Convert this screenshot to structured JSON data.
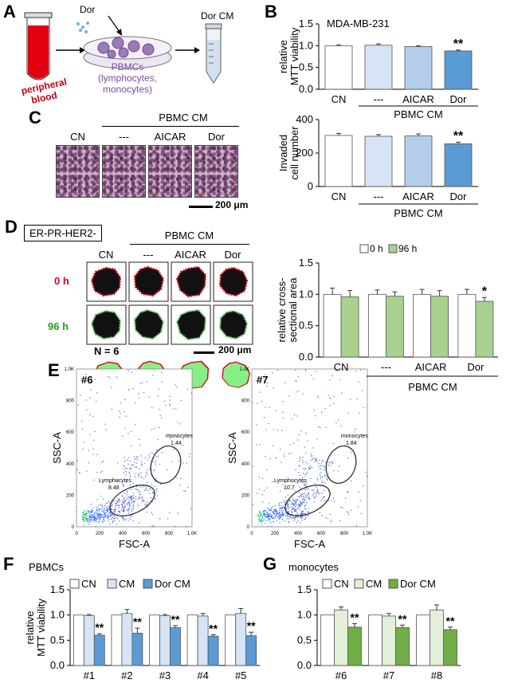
{
  "panelA": {
    "letter": "A",
    "dor": "Dor",
    "dor_cm": "Dor CM",
    "blood": "peripheral\nblood",
    "pbmcs": "PBMCs",
    "pbmc_sub": "(lymphocytes,\nmonocytes)"
  },
  "panelB": {
    "letter": "B",
    "cell_line": "MDA-MB-231",
    "ylabel": "relative\nMTT viability",
    "categories": [
      "CN",
      "---",
      "AICAR",
      "Dor"
    ],
    "group_label": "PBMC CM",
    "sig": "**"
  },
  "panelC": {
    "letter": "C",
    "group_label": "PBMC CM",
    "labels": [
      "CN",
      "---",
      "AICAR",
      "Dor"
    ],
    "scale": "200 μm",
    "ylabel": "Invaded\ncell number",
    "categories": [
      "CN",
      "---",
      "AICAR",
      "Dor"
    ],
    "sig": "**"
  },
  "panelD": {
    "letter": "D",
    "subtype": "ER-PR-HER2-",
    "group_label": "PBMC CM",
    "labels": [
      "CN",
      "---",
      "AICAR",
      "Dor"
    ],
    "row0": "0 h",
    "row96": "96 h",
    "n": "N = 6",
    "scale": "200 μm",
    "ylabel": "relative cross-\nsectional area",
    "legend": [
      "0 h",
      "96 h"
    ],
    "categories": [
      "CN",
      "---",
      "AICAR",
      "Dor"
    ],
    "sig": "*"
  },
  "panelE": {
    "letter": "E",
    "plots": [
      {
        "id": "#6",
        "mono_label": "monocytes",
        "mono_val": "1.44",
        "lymph_label": "Lymphocytes",
        "lymph_val": "8.48"
      },
      {
        "id": "#7",
        "mono_label": "monocytes",
        "mono_val": "1.84",
        "lymph_label": "Lymphocytes",
        "lymph_val": "10.7"
      }
    ],
    "xlabel": "FSC-A",
    "ylabel": "SSC-A",
    "xticks": [
      "0",
      "200",
      "400",
      "600",
      "800",
      "1.0K"
    ],
    "yticks": [
      "0",
      "200",
      "400",
      "600",
      "800",
      "1.0K"
    ]
  },
  "panelF": {
    "letter": "F",
    "title": "PBMCs",
    "legend": [
      "CN",
      "CM",
      "Dor CM"
    ],
    "ylabel": "relative\nMTT viability",
    "categories": [
      "#1",
      "#2",
      "#3",
      "#4",
      "#5"
    ],
    "sig": "**"
  },
  "panelG": {
    "letter": "G",
    "title": "monocytes",
    "legend": [
      "CN",
      "CM",
      "Dor CM"
    ],
    "categories": [
      "#6",
      "#7",
      "#8"
    ],
    "sig": "**"
  },
  "colors": {
    "white": "#ffffff",
    "light_blue": "#d6e4f5",
    "mid_blue": "#b4cdeb",
    "dark_blue": "#5b9bd5",
    "light_green": "#e2efd9",
    "green": "#a9d18e",
    "dark_green": "#70ad47",
    "red": "#d9001b",
    "flow_green": "#20a020"
  },
  "chart_data": [
    {
      "type": "bar",
      "panel": "B",
      "title": "MDA-MB-231",
      "ylabel": "relative MTT viability",
      "categories": [
        "CN",
        "---",
        "AICAR",
        "Dor"
      ],
      "values": [
        1.0,
        1.01,
        0.98,
        0.88
      ],
      "errors": [
        0.02,
        0.03,
        0.02,
        0.02
      ],
      "ylim": [
        0.0,
        1.5
      ],
      "yticks": [
        0.0,
        0.5,
        1.0,
        1.5
      ]
    },
    {
      "type": "bar",
      "panel": "C",
      "ylabel": "Invaded cell number",
      "categories": [
        "CN",
        "---",
        "AICAR",
        "Dor"
      ],
      "values": [
        305,
        300,
        302,
        255
      ],
      "errors": [
        12,
        10,
        12,
        10
      ],
      "ylim": [
        0,
        400
      ],
      "yticks": [
        0,
        200,
        400
      ]
    },
    {
      "type": "bar",
      "panel": "D",
      "ylabel": "relative cross-sectional area",
      "categories": [
        "CN",
        "---",
        "AICAR",
        "Dor"
      ],
      "series": [
        {
          "name": "0 h",
          "values": [
            1.0,
            1.0,
            1.0,
            1.0
          ],
          "errors": [
            0.1,
            0.07,
            0.08,
            0.08
          ]
        },
        {
          "name": "96 h",
          "values": [
            0.96,
            0.97,
            0.97,
            0.89
          ],
          "errors": [
            0.1,
            0.07,
            0.09,
            0.06
          ]
        }
      ],
      "ylim": [
        0.0,
        1.5
      ],
      "yticks": [
        0.0,
        0.5,
        1.0,
        1.5
      ]
    },
    {
      "type": "bar",
      "panel": "F",
      "title": "PBMCs",
      "ylabel": "relative MTT viability",
      "categories": [
        "#1",
        "#2",
        "#3",
        "#4",
        "#5"
      ],
      "series": [
        {
          "name": "CN",
          "values": [
            1.0,
            1.0,
            1.0,
            1.0,
            1.0
          ],
          "errors": [
            0,
            0,
            0,
            0,
            0
          ]
        },
        {
          "name": "CM",
          "values": [
            0.99,
            1.03,
            0.99,
            0.98,
            1.03
          ],
          "errors": [
            0.02,
            0.08,
            0.02,
            0.05,
            0.1
          ]
        },
        {
          "name": "Dor CM",
          "values": [
            0.6,
            0.64,
            0.75,
            0.58,
            0.59
          ],
          "errors": [
            0.03,
            0.1,
            0.04,
            0.03,
            0.07
          ]
        }
      ],
      "ylim": [
        0.0,
        1.5
      ],
      "yticks": [
        0.0,
        0.5,
        1.0,
        1.5
      ]
    },
    {
      "type": "bar",
      "panel": "G",
      "title": "monocytes",
      "categories": [
        "#6",
        "#7",
        "#8"
      ],
      "series": [
        {
          "name": "CN",
          "values": [
            1.0,
            1.0,
            1.0
          ],
          "errors": [
            0,
            0,
            0
          ]
        },
        {
          "name": "CM",
          "values": [
            1.1,
            0.98,
            1.1
          ],
          "errors": [
            0.06,
            0.05,
            0.1
          ]
        },
        {
          "name": "Dor CM",
          "values": [
            0.76,
            0.75,
            0.71
          ],
          "errors": [
            0.07,
            0.05,
            0.05
          ]
        }
      ],
      "ylim": [
        0.0,
        1.5
      ],
      "yticks": [
        0.0,
        0.5,
        1.0,
        1.5
      ]
    }
  ]
}
